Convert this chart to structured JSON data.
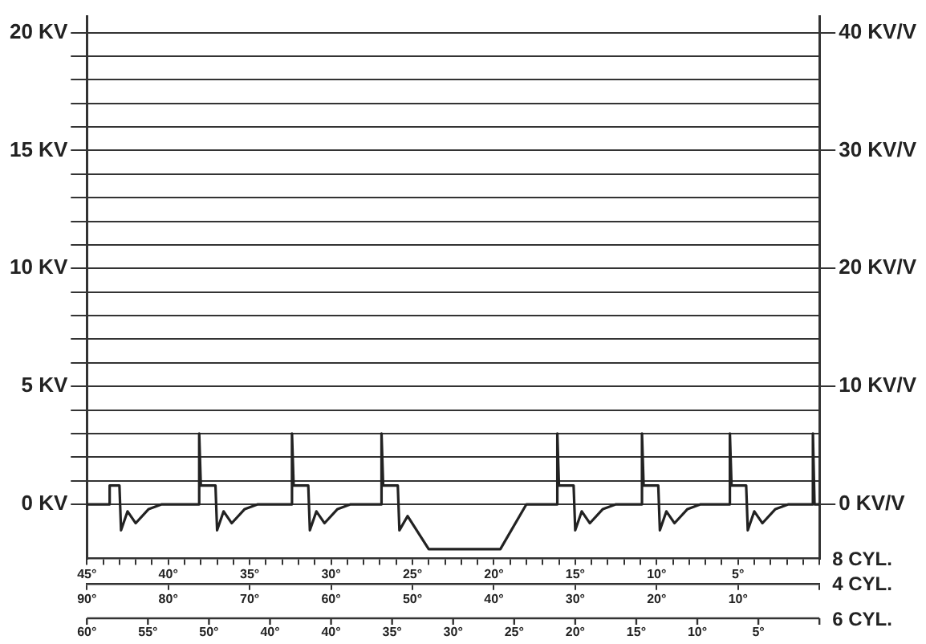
{
  "chart_data": {
    "type": "line",
    "xlabel": "8 CYL.",
    "x2label": "4 CYL.",
    "annotations": [
      "60°",
      "55°",
      "50°",
      "40°",
      "40°",
      "35°",
      "30°",
      "25°",
      "20°",
      "15°",
      "10°",
      "5°",
      "6 CYL."
    ],
    "x": [
      45,
      43.6,
      43.6,
      43,
      42.9,
      42.5,
      42,
      41.2,
      40.4,
      38.1,
      38.1,
      38,
      37.1,
      37,
      36.6,
      36.1,
      35.3,
      34.5,
      32.4,
      32.4,
      32.3,
      31.4,
      31.3,
      30.9,
      30.4,
      29.6,
      28.8,
      26.9,
      26.9,
      26.8,
      25.9,
      25.8,
      25.3,
      24,
      19.6,
      18,
      16.1,
      16.1,
      16,
      15.1,
      15,
      14.6,
      14.1,
      13.3,
      12.5,
      10.9,
      10.9,
      10.8,
      9.9,
      9.8,
      9.4,
      8.9,
      8.1,
      7.3,
      5.5,
      5.5,
      5.4,
      4.5,
      4.4,
      4,
      3.5,
      2.7,
      1.9,
      0.4,
      0.4,
      0.3,
      0
    ],
    "series": [
      {
        "color": "#222222",
        "values": [
          0,
          0,
          0.8,
          0.8,
          -1.1,
          -0.3,
          -0.8,
          -0.2,
          0,
          0,
          3,
          0.8,
          0.8,
          -1.1,
          -0.3,
          -0.8,
          -0.2,
          0,
          0,
          3,
          0.8,
          0.8,
          -1.1,
          -0.3,
          -0.8,
          -0.2,
          0,
          0,
          3,
          0.8,
          0.8,
          -1.1,
          -0.5,
          -1.9,
          -1.9,
          0,
          0,
          3,
          0.8,
          0.8,
          -1.1,
          -0.3,
          -0.8,
          -0.2,
          0,
          0,
          3,
          0.8,
          0.8,
          -1.1,
          -0.3,
          -0.8,
          -0.2,
          0,
          0,
          3,
          0.8,
          0.8,
          -1.1,
          -0.3,
          -0.8,
          -0.2,
          0,
          0,
          3,
          0,
          0
        ]
      }
    ],
    "xlim": [
      45,
      0
    ],
    "xticks": [
      {
        "value": 45,
        "label": "45°"
      },
      {
        "value": 44,
        "label": null
      },
      {
        "value": 43,
        "label": null
      },
      {
        "value": 42,
        "label": null
      },
      {
        "value": 41,
        "label": null
      },
      {
        "value": 40,
        "label": "40°"
      },
      {
        "value": 39,
        "label": null
      },
      {
        "value": 38,
        "label": null
      },
      {
        "value": 37,
        "label": null
      },
      {
        "value": 36,
        "label": null
      },
      {
        "value": 35,
        "label": "35°"
      },
      {
        "value": 34,
        "label": null
      },
      {
        "value": 33,
        "label": null
      },
      {
        "value": 32,
        "label": null
      },
      {
        "value": 31,
        "label": null
      },
      {
        "value": 30,
        "label": "30°"
      },
      {
        "value": 29,
        "label": null
      },
      {
        "value": 28,
        "label": null
      },
      {
        "value": 27,
        "label": null
      },
      {
        "value": 26,
        "label": null
      },
      {
        "value": 25,
        "label": "25°"
      },
      {
        "value": 24,
        "label": null
      },
      {
        "value": 23,
        "label": null
      },
      {
        "value": 22,
        "label": null
      },
      {
        "value": 21,
        "label": null
      },
      {
        "value": 20,
        "label": "20°"
      },
      {
        "value": 19,
        "label": null
      },
      {
        "value": 18,
        "label": null
      },
      {
        "value": 17,
        "label": null
      },
      {
        "value": 16,
        "label": null
      },
      {
        "value": 15,
        "label": "15°"
      },
      {
        "value": 14,
        "label": null
      },
      {
        "value": 13,
        "label": null
      },
      {
        "value": 12,
        "label": null
      },
      {
        "value": 11,
        "label": null
      },
      {
        "value": 10,
        "label": "10°"
      },
      {
        "value": 9,
        "label": null
      },
      {
        "value": 8,
        "label": null
      },
      {
        "value": 7,
        "label": null
      },
      {
        "value": 6,
        "label": null
      },
      {
        "value": 5,
        "label": "5°"
      },
      {
        "value": 4,
        "label": null
      },
      {
        "value": 3,
        "label": null
      },
      {
        "value": 2,
        "label": null
      },
      {
        "value": 1,
        "label": null
      },
      {
        "value": 0,
        "label": null
      }
    ],
    "x2lim": [
      90,
      0
    ],
    "x2ticks": [
      {
        "value": 90,
        "label": "90°"
      },
      {
        "value": 80,
        "label": "80°"
      },
      {
        "value": 70,
        "label": "70°"
      },
      {
        "value": 60,
        "label": "60°"
      },
      {
        "value": 50,
        "label": "50°"
      },
      {
        "value": 40,
        "label": "40°"
      },
      {
        "value": 30,
        "label": "30°"
      },
      {
        "value": 20,
        "label": "20°"
      },
      {
        "value": 10,
        "label": "10°"
      },
      {
        "value": 0,
        "label": null
      }
    ],
    "ylim": [
      -2.3,
      20.7
    ],
    "yticks": [
      {
        "value": 0,
        "label": "0 KV"
      },
      {
        "value": 1,
        "label": null
      },
      {
        "value": 2,
        "label": null
      },
      {
        "value": 3,
        "label": null
      },
      {
        "value": 4,
        "label": null
      },
      {
        "value": 5,
        "label": "5 KV"
      },
      {
        "value": 6,
        "label": null
      },
      {
        "value": 7,
        "label": null
      },
      {
        "value": 8,
        "label": null
      },
      {
        "value": 9,
        "label": null
      },
      {
        "value": 10,
        "label": "10 KV"
      },
      {
        "value": 11,
        "label": null
      },
      {
        "value": 12,
        "label": null
      },
      {
        "value": 13,
        "label": null
      },
      {
        "value": 14,
        "label": null
      },
      {
        "value": 15,
        "label": "15 KV"
      },
      {
        "value": 16,
        "label": null
      },
      {
        "value": 17,
        "label": null
      },
      {
        "value": 18,
        "label": null
      },
      {
        "value": 19,
        "label": null
      },
      {
        "value": 20,
        "label": "20 KV"
      }
    ],
    "y2lim": [
      -4.6,
      41.4
    ],
    "y2ticks": [
      {
        "value": 0,
        "label": "0 KV/V"
      },
      {
        "value": 10,
        "label": "10 KV/V"
      },
      {
        "value": 20,
        "label": "20 KV/V"
      },
      {
        "value": 30,
        "label": "30 KV/V"
      },
      {
        "value": 40,
        "label": "40 KV/V"
      }
    ],
    "grid": "y",
    "legend": false,
    "marker": "none",
    "line_style": "solid"
  }
}
